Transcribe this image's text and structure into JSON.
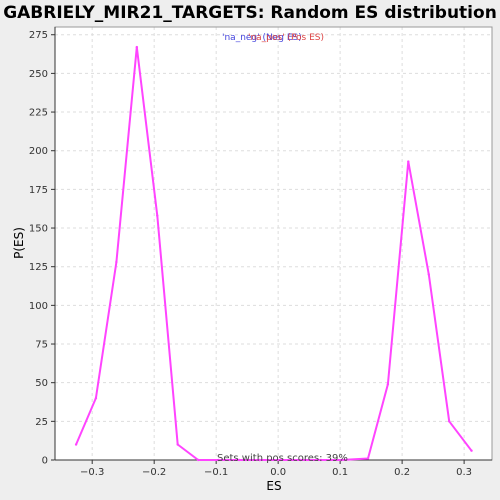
{
  "chart_data": {
    "type": "line",
    "title": "GABRIELY_MIR21_TARGETS: Random ES distribution",
    "xlabel": "ES",
    "ylabel": "P(ES)",
    "xlim": [
      -0.36,
      0.345
    ],
    "ylim": [
      0,
      280
    ],
    "x_ticks": [
      -0.3,
      -0.2,
      -0.1,
      0.0,
      0.1,
      0.2,
      0.3
    ],
    "x_tick_labels": [
      "−0.3",
      "−0.2",
      "−0.1",
      "0.0",
      "0.1",
      "0.2",
      "0.3"
    ],
    "y_ticks": [
      0,
      25,
      50,
      75,
      100,
      125,
      150,
      175,
      200,
      225,
      250,
      275
    ],
    "y_tick_labels": [
      "0",
      "25",
      "50",
      "75",
      "100",
      "125",
      "150",
      "175",
      "200",
      "225",
      "250",
      "275"
    ],
    "grid": true,
    "legend_entries": [
      "'na_neg' (Neg ES)",
      "'na_pos' (Pos ES)"
    ],
    "legend_colors": [
      "#4444dd",
      "#dd4444"
    ],
    "annotation": "Sets with pos scores: 39%",
    "series": [
      {
        "color": "#ff44ff",
        "x": [
          -0.326,
          -0.294,
          -0.261,
          -0.228,
          -0.195,
          -0.162,
          -0.129,
          -0.096,
          -0.063,
          -0.03,
          0.003,
          0.036,
          0.069,
          0.102,
          0.145,
          0.177,
          0.21,
          0.243,
          0.276,
          0.312
        ],
        "y": [
          10,
          40,
          128,
          267,
          158,
          10,
          0,
          0,
          0,
          0,
          0,
          0,
          0,
          0,
          1,
          49,
          193,
          120,
          25,
          6
        ]
      }
    ]
  }
}
